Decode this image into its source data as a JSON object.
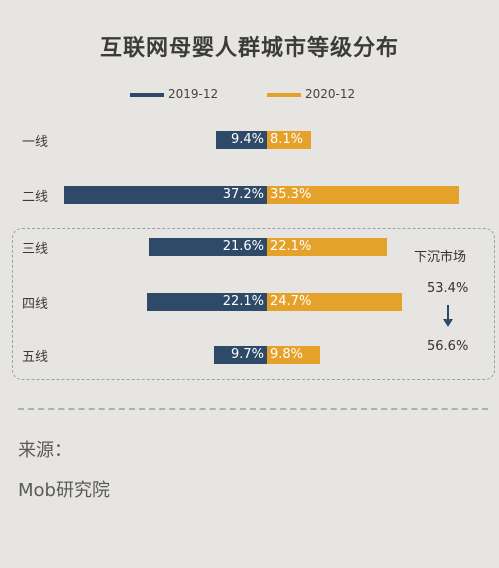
{
  "title": "互联网母婴人群城市等级分布",
  "chart_data": {
    "type": "bar",
    "orientation": "horizontal-diverging",
    "categories": [
      "一线",
      "二线",
      "三线",
      "四线",
      "五线"
    ],
    "series": [
      {
        "name": "2019-12",
        "values": [
          9.4,
          37.2,
          21.6,
          22.1,
          9.7
        ],
        "labels": [
          "9.4%",
          "37.2%",
          "21.6%",
          "22.1%",
          "9.7%"
        ]
      },
      {
        "name": "2020-12",
        "values": [
          8.1,
          35.3,
          22.1,
          24.7,
          9.8
        ],
        "labels": [
          "8.1%",
          "35.3%",
          "22.1%",
          "24.7%",
          "9.8%"
        ]
      }
    ],
    "colors": {
      "2019-12": "#2f4a68",
      "2020-12": "#e5a22a"
    },
    "legend_position": "top-center",
    "grid": false,
    "annotation": {
      "title": "下沉市场",
      "from": "53.4%",
      "to": "56.6%",
      "values": [
        53.4,
        56.6
      ]
    }
  },
  "source": {
    "label": "来源：",
    "value": "Mob研究院"
  }
}
